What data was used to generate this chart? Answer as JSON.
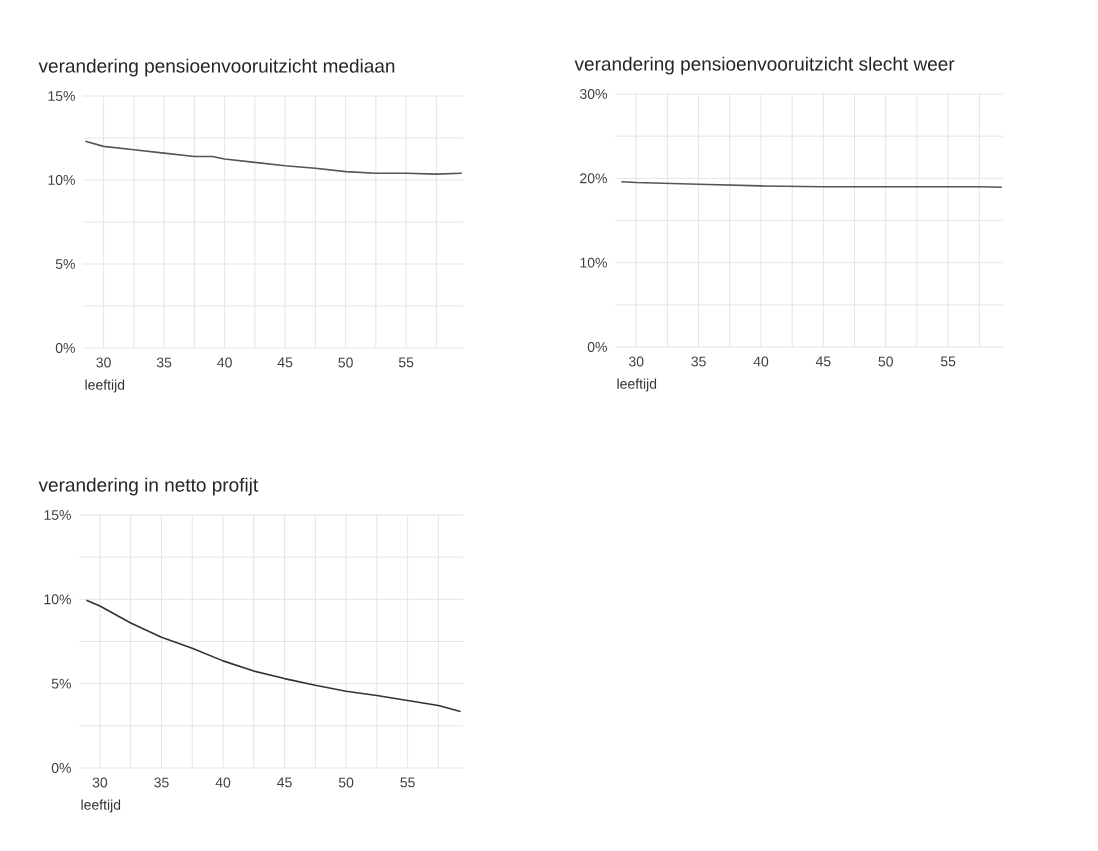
{
  "chart_data": [
    {
      "type": "line",
      "title": "verandering pensioenvooruitzicht mediaan",
      "xlabel": "leeftijd",
      "color": "#555555",
      "grid": true,
      "x": [
        28.5,
        30,
        32.5,
        35,
        37.5,
        39,
        40,
        42.5,
        45,
        47.5,
        50,
        52.5,
        55,
        57.5,
        59.6
      ],
      "values": [
        12.3,
        12.0,
        11.8,
        11.6,
        11.4,
        11.4,
        11.25,
        11.05,
        10.85,
        10.7,
        10.5,
        10.4,
        10.4,
        10.35,
        10.4
      ],
      "xlim": [
        28.3,
        59.7
      ],
      "ylim": [
        0,
        15
      ],
      "xticks": [
        30,
        35,
        40,
        45,
        50,
        55
      ],
      "yticks": [
        {
          "value": 0,
          "label": "0%"
        },
        {
          "value": 5,
          "label": "5%"
        },
        {
          "value": 10,
          "label": "10%"
        },
        {
          "value": 15,
          "label": "15%"
        }
      ]
    },
    {
      "type": "line",
      "title": "verandering pensioenvooruitzicht slecht weer",
      "xlabel": "leeftijd",
      "color": "#555555",
      "grid": true,
      "x": [
        28.8,
        30,
        35,
        40,
        45,
        50,
        55,
        57.5,
        59.3
      ],
      "values": [
        19.6,
        19.5,
        19.3,
        19.1,
        19.0,
        19.0,
        19.0,
        19.0,
        18.95
      ],
      "xlim": [
        28.3,
        59.4
      ],
      "ylim": [
        0,
        30
      ],
      "xticks": [
        30,
        35,
        40,
        45,
        50,
        55
      ],
      "yticks": [
        {
          "value": 0,
          "label": "0%"
        },
        {
          "value": 10,
          "label": "10%"
        },
        {
          "value": 20,
          "label": "20%"
        },
        {
          "value": 30,
          "label": "30%"
        }
      ]
    },
    {
      "type": "line",
      "title": "verandering in netto profijt",
      "xlabel": "leeftijd",
      "color": "#333333",
      "grid": true,
      "x": [
        28.9,
        30,
        32.5,
        35,
        37.5,
        40,
        42.5,
        45,
        47.5,
        50,
        52.5,
        55,
        57.5,
        59.3
      ],
      "values": [
        9.95,
        9.6,
        8.6,
        7.75,
        7.1,
        6.35,
        5.75,
        5.3,
        4.9,
        4.55,
        4.3,
        4.0,
        3.7,
        3.35
      ],
      "xlim": [
        28.3,
        59.5
      ],
      "ylim": [
        0,
        15
      ],
      "xticks": [
        30,
        35,
        40,
        45,
        50,
        55
      ],
      "yticks": [
        {
          "value": 0,
          "label": "0%"
        },
        {
          "value": 5,
          "label": "5%"
        },
        {
          "value": 10,
          "label": "10%"
        },
        {
          "value": 15,
          "label": "15%"
        }
      ]
    }
  ]
}
